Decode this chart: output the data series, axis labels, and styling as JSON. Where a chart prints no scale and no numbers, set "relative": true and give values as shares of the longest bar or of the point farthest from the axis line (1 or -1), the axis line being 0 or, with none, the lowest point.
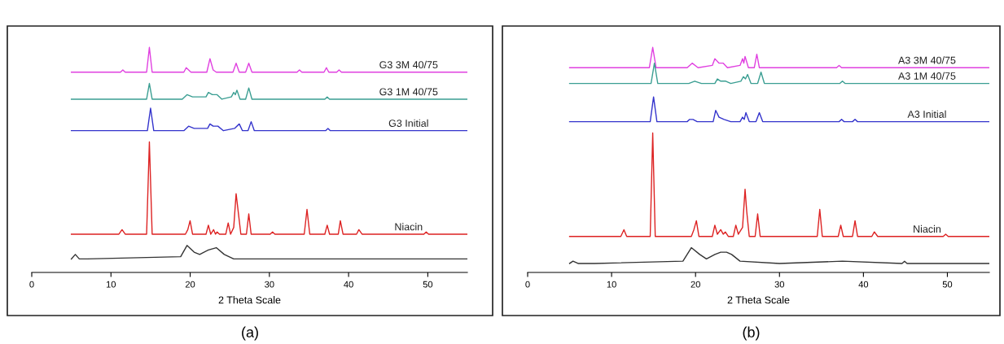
{
  "chart_data": [
    {
      "type": "line",
      "title": "(a)",
      "xlabel": "2 Theta Scale",
      "relative": true,
      "xlim": [
        0,
        55
      ],
      "xticks": [
        0,
        10,
        20,
        30,
        40,
        50
      ],
      "grid": false,
      "legend": false,
      "marker": "none",
      "line_style": "solid",
      "series": [
        {
          "name": "G3 3M 40/75",
          "color": "#e040e0",
          "x": [
            5,
            11.2,
            11.5,
            11.8,
            14.5,
            14.85,
            15.2,
            19.2,
            19.5,
            19.8,
            20.1,
            22.1,
            22.5,
            22.9,
            23.3,
            25.4,
            25.8,
            26.2,
            27.0,
            27.4,
            27.8,
            33.5,
            33.8,
            34.1,
            36.9,
            37.2,
            37.5,
            38.5,
            38.8,
            39.1,
            55
          ],
          "values": [
            0.89,
            0.89,
            0.9,
            0.89,
            0.89,
            1,
            0.89,
            0.89,
            0.91,
            0.9,
            0.89,
            0.89,
            0.95,
            0.9,
            0.89,
            0.89,
            0.93,
            0.89,
            0.89,
            0.93,
            0.89,
            0.89,
            0.9,
            0.89,
            0.89,
            0.91,
            0.89,
            0.89,
            0.9,
            0.89,
            0.89
          ]
        },
        {
          "name": "G3 1M 40/75",
          "color": "#3a9e92",
          "x": [
            5,
            14.5,
            14.85,
            15.2,
            19.0,
            19.6,
            20.3,
            22.0,
            22.3,
            22.8,
            23.4,
            24.0,
            25.2,
            25.5,
            25.7,
            25.9,
            26.3,
            27.0,
            27.4,
            27.8,
            37.0,
            37.3,
            37.6,
            55
          ],
          "values": [
            0.77,
            0.77,
            0.84,
            0.77,
            0.77,
            0.79,
            0.78,
            0.78,
            0.8,
            0.79,
            0.79,
            0.77,
            0.78,
            0.8,
            0.79,
            0.81,
            0.77,
            0.77,
            0.82,
            0.77,
            0.77,
            0.78,
            0.77,
            0.77
          ]
        },
        {
          "name": "G3 Initial",
          "color": "#3333cc",
          "x": [
            5,
            14.6,
            15.0,
            15.4,
            19.2,
            19.8,
            20.5,
            22.2,
            22.5,
            22.9,
            23.5,
            24.2,
            25.6,
            26.2,
            26.6,
            27.3,
            27.7,
            28.1,
            37.1,
            37.4,
            37.7,
            55
          ],
          "values": [
            0.63,
            0.63,
            0.73,
            0.63,
            0.63,
            0.65,
            0.64,
            0.64,
            0.66,
            0.65,
            0.65,
            0.63,
            0.64,
            0.66,
            0.63,
            0.63,
            0.67,
            0.63,
            0.63,
            0.64,
            0.63,
            0.63
          ]
        },
        {
          "name": "Niacin",
          "color": "#dd2222",
          "x": [
            5,
            11.0,
            11.4,
            11.8,
            14.5,
            14.85,
            15.2,
            19.4,
            19.7,
            19.99,
            20.3,
            22.0,
            22.3,
            22.6,
            22.96,
            23.2,
            23.4,
            23.7,
            24.5,
            24.8,
            25.1,
            25.5,
            25.8,
            26.1,
            26.4,
            27.1,
            27.4,
            27.7,
            30.1,
            30.4,
            30.7,
            34.4,
            34.75,
            35.1,
            37.0,
            37.3,
            37.6,
            38.7,
            38.96,
            39.3,
            41.0,
            41.3,
            41.7,
            49.5,
            49.8,
            50.1,
            55
          ],
          "values": [
            0.17,
            0.17,
            0.19,
            0.17,
            0.17,
            0.58,
            0.17,
            0.17,
            0.19,
            0.23,
            0.17,
            0.17,
            0.21,
            0.17,
            0.19,
            0.17,
            0.18,
            0.17,
            0.17,
            0.22,
            0.17,
            0.2,
            0.35,
            0.26,
            0.17,
            0.17,
            0.26,
            0.17,
            0.17,
            0.18,
            0.17,
            0.17,
            0.28,
            0.17,
            0.17,
            0.21,
            0.17,
            0.17,
            0.23,
            0.17,
            0.17,
            0.19,
            0.17,
            0.17,
            0.18,
            0.17,
            0.17
          ]
        },
        {
          "color": "#333333",
          "x": [
            5,
            5.5,
            6.0,
            7,
            18.8,
            19.6,
            20.5,
            21.2,
            22.3,
            23.3,
            24.3,
            25.5,
            30,
            55
          ],
          "values": [
            0.06,
            0.08,
            0.06,
            0.06,
            0.07,
            0.12,
            0.09,
            0.08,
            0.1,
            0.11,
            0.08,
            0.06,
            0.06,
            0.06
          ]
        }
      ]
    },
    {
      "type": "line",
      "title": "(b)",
      "xlabel": "2 Theta Scale",
      "relative": true,
      "xlim": [
        0,
        55
      ],
      "xticks": [
        0,
        10,
        20,
        30,
        40,
        50
      ],
      "grid": false,
      "legend": false,
      "marker": "none",
      "line_style": "solid",
      "series": [
        {
          "name": "A3 3M 40/75",
          "color": "#e040e0",
          "x": [
            5,
            14.5,
            14.9,
            15.3,
            19.0,
            19.6,
            20.3,
            22.0,
            22.3,
            22.8,
            23.3,
            23.8,
            25.3,
            25.6,
            25.75,
            25.9,
            26.3,
            27.0,
            27.3,
            27.6,
            36.8,
            37.1,
            37.4,
            55
          ],
          "values": [
            0.91,
            0.91,
            1,
            0.91,
            0.91,
            0.93,
            0.91,
            0.92,
            0.95,
            0.93,
            0.93,
            0.91,
            0.92,
            0.95,
            0.93,
            0.96,
            0.91,
            0.91,
            0.97,
            0.91,
            0.91,
            0.92,
            0.91,
            0.91
          ]
        },
        {
          "name": "A3 1M 40/75",
          "color": "#3a9e92",
          "x": [
            5,
            14.7,
            15.1,
            15.5,
            19.2,
            19.9,
            20.7,
            22.3,
            22.6,
            23.0,
            23.6,
            24.2,
            25.4,
            25.7,
            25.95,
            26.2,
            26.6,
            27.4,
            27.8,
            28.2,
            37.2,
            37.5,
            37.8,
            55
          ],
          "values": [
            0.84,
            0.84,
            0.93,
            0.84,
            0.84,
            0.85,
            0.84,
            0.84,
            0.86,
            0.85,
            0.85,
            0.84,
            0.85,
            0.87,
            0.86,
            0.88,
            0.84,
            0.84,
            0.89,
            0.84,
            0.84,
            0.85,
            0.84,
            0.84
          ]
        },
        {
          "name": "A3 Initial",
          "color": "#3333cc",
          "x": [
            5,
            14.6,
            15.0,
            15.4,
            19.0,
            19.3,
            19.7,
            20.2,
            22.1,
            22.4,
            22.8,
            23.4,
            24.2,
            25.3,
            25.6,
            25.8,
            26.0,
            26.4,
            27.2,
            27.6,
            28.0,
            37.1,
            37.4,
            37.7,
            38.7,
            39.0,
            39.3,
            55
          ],
          "values": [
            0.67,
            0.67,
            0.78,
            0.67,
            0.67,
            0.68,
            0.68,
            0.67,
            0.67,
            0.72,
            0.69,
            0.68,
            0.67,
            0.67,
            0.69,
            0.68,
            0.71,
            0.67,
            0.67,
            0.71,
            0.67,
            0.67,
            0.68,
            0.67,
            0.67,
            0.68,
            0.67,
            0.67
          ]
        },
        {
          "name": "Niacin",
          "color": "#dd2222",
          "x": [
            5,
            11.1,
            11.47,
            11.8,
            14.6,
            14.9,
            15.2,
            19.5,
            19.8,
            20.1,
            20.4,
            22.0,
            22.3,
            22.6,
            23.0,
            23.3,
            23.55,
            23.9,
            24.5,
            24.8,
            25.1,
            25.6,
            25.9,
            26.1,
            26.4,
            27.1,
            27.4,
            27.7,
            34.5,
            34.8,
            35.1,
            37.0,
            37.3,
            37.6,
            38.7,
            39.0,
            39.3,
            41.0,
            41.3,
            41.7,
            49.5,
            49.8,
            50.1,
            55
          ],
          "values": [
            0.16,
            0.16,
            0.19,
            0.16,
            0.16,
            0.62,
            0.16,
            0.16,
            0.19,
            0.23,
            0.16,
            0.16,
            0.21,
            0.17,
            0.19,
            0.17,
            0.18,
            0.16,
            0.16,
            0.21,
            0.17,
            0.2,
            0.37,
            0.27,
            0.16,
            0.16,
            0.26,
            0.16,
            0.16,
            0.28,
            0.16,
            0.16,
            0.21,
            0.16,
            0.16,
            0.23,
            0.16,
            0.16,
            0.18,
            0.16,
            0.16,
            0.17,
            0.16,
            0.16
          ]
        },
        {
          "color": "#333333",
          "x": [
            5,
            5.4,
            6,
            8,
            18.5,
            19.5,
            20.5,
            21.3,
            22.3,
            23.0,
            23.7,
            24.3,
            25.3,
            30,
            37.5,
            44.6,
            44.9,
            45.2,
            55
          ],
          "values": [
            0.04,
            0.05,
            0.04,
            0.04,
            0.05,
            0.11,
            0.08,
            0.06,
            0.08,
            0.09,
            0.09,
            0.08,
            0.05,
            0.04,
            0.05,
            0.04,
            0.05,
            0.04,
            0.04
          ]
        }
      ]
    }
  ]
}
